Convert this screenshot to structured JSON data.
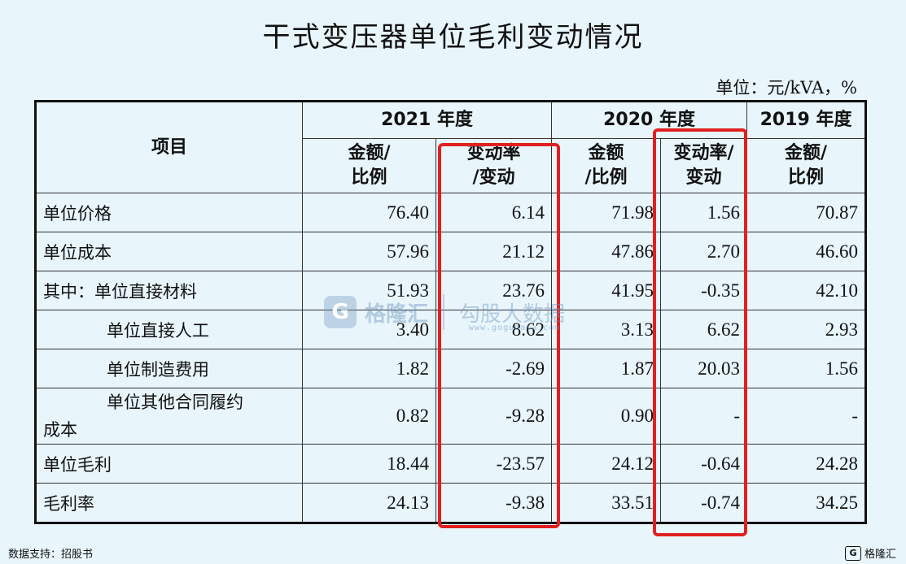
{
  "title": "干式变压器单位毛利变动情况",
  "unit": "单位：元/kVA，%",
  "table": {
    "item_header": "项目",
    "years": [
      "2021 年度",
      "2020 年度",
      "2019 年度"
    ],
    "sub": {
      "amount_l1": "金额/",
      "amount_l2": "比例",
      "change_l1": "变动率",
      "change_l2": "/变动",
      "amount2_l1": "金额",
      "amount2_l2": "/比例",
      "change2_l1": "变动率/",
      "change2_l2": "变动",
      "amount3_l1": "金额/",
      "amount3_l2": "比例"
    },
    "rows": [
      {
        "label": "单位价格",
        "v": [
          "76.40",
          "6.14",
          "71.98",
          "1.56",
          "70.87"
        ]
      },
      {
        "label": "单位成本",
        "v": [
          "57.96",
          "21.12",
          "47.86",
          "2.70",
          "46.60"
        ]
      },
      {
        "label": "其中：单位直接材料",
        "v": [
          "51.93",
          "23.76",
          "41.95",
          "-0.35",
          "42.10"
        ]
      },
      {
        "label": "单位直接人工",
        "v": [
          "3.40",
          "8.62",
          "3.13",
          "6.62",
          "2.93"
        ]
      },
      {
        "label": "单位制造费用",
        "v": [
          "1.82",
          "-2.69",
          "1.87",
          "20.03",
          "1.56"
        ]
      },
      {
        "label_l1": "单位其他合同履约",
        "label_l2": "成本",
        "v": [
          "0.82",
          "-9.28",
          "0.90",
          "-",
          "-"
        ]
      },
      {
        "label": "单位毛利",
        "v": [
          "18.44",
          "-23.57",
          "24.12",
          "-0.64",
          "24.28"
        ]
      },
      {
        "label": "毛利率",
        "v": [
          "24.13",
          "-9.38",
          "33.51",
          "-0.74",
          "34.25"
        ]
      }
    ]
  },
  "watermark": {
    "logo": "G",
    "name": "格隆汇",
    "tagline": "勾股大数据",
    "url": "www.gogudata.com"
  },
  "source": "数据支持：招股书",
  "brand": {
    "logo": "G",
    "name": "格隆汇"
  },
  "colors": {
    "highlight": "#e02020",
    "background": "#e8f5fb"
  }
}
